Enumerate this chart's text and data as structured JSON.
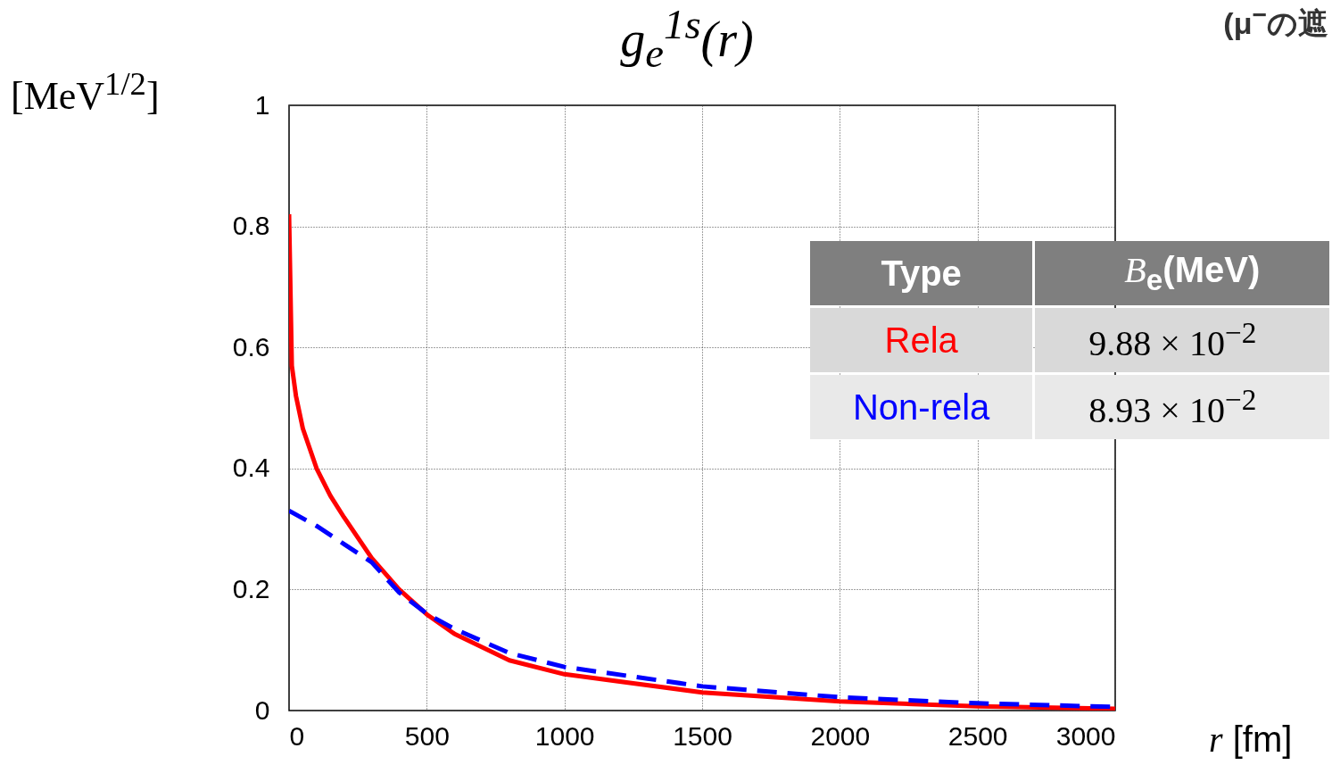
{
  "chart_data": {
    "type": "line",
    "title": "g$_{e}$$^{1s}$(r)",
    "xlabel": "r [fm]",
    "ylabel": "[MeV$^{1/2}$]",
    "legend_title": "Type",
    "annotations": [
      "B$_{e}$(MeV)",
      "9.88 × 10$^{−2}$",
      "8.93 × 10$^{−2}$",
      "(μ$^{−}$の遮"
    ],
    "series": [
      {
        "name": "Rela",
        "color": "#ff0000",
        "line_style": "solid",
        "x": [
          0,
          10,
          25,
          50,
          100,
          150,
          200,
          300,
          400,
          500,
          600,
          800,
          1000,
          1500,
          2000,
          2500,
          3000
        ],
        "values": [
          0.82,
          0.57,
          0.52,
          0.466,
          0.4,
          0.355,
          0.319,
          0.252,
          0.2,
          0.159,
          0.127,
          0.083,
          0.06,
          0.03,
          0.015,
          0.007,
          0.003
        ]
      },
      {
        "name": "Non-rela",
        "color": "#0000ff",
        "line_style": "dashed",
        "x": [
          0,
          100,
          200,
          300,
          400,
          500,
          600,
          800,
          1000,
          1500,
          2000,
          2500,
          3000
        ],
        "values": [
          0.33,
          0.305,
          0.275,
          0.245,
          0.195,
          0.16,
          0.135,
          0.095,
          0.072,
          0.04,
          0.022,
          0.012,
          0.006
        ]
      }
    ],
    "xlim": [
      0,
      3000
    ],
    "xticks": [
      0,
      500,
      1000,
      1500,
      2000,
      2500,
      3000
    ],
    "ylim": [
      0,
      1
    ],
    "yticks": [
      0,
      0.2,
      0.4,
      0.6,
      0.8,
      1
    ],
    "grid": true,
    "legend": "right",
    "marker": "none"
  }
}
